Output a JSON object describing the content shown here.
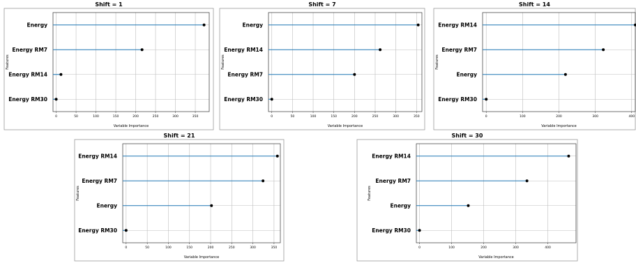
{
  "chart_data": [
    {
      "type": "lollipop",
      "title": "Shift = 1",
      "xlabel": "Variable Importance",
      "ylabel": "Features",
      "categories": [
        "Energy",
        "Energy RM7",
        "Energy RM14",
        "Energy RM30"
      ],
      "values": [
        372,
        216,
        12,
        0
      ],
      "xlim": [
        -8,
        385
      ],
      "xticks": [
        0,
        50,
        100,
        150,
        200,
        250,
        300,
        350
      ],
      "grid": true,
      "stem_color": "#1f77b4"
    },
    {
      "type": "lollipop",
      "title": "Shift = 7",
      "xlabel": "Variable Importance",
      "ylabel": "Features",
      "categories": [
        "Energy",
        "Energy RM14",
        "Energy RM7",
        "Energy RM30"
      ],
      "values": [
        354,
        262,
        200,
        0
      ],
      "xlim": [
        -8,
        363
      ],
      "xticks": [
        0,
        50,
        100,
        150,
        200,
        250,
        300,
        350
      ],
      "grid": true,
      "stem_color": "#1f77b4"
    },
    {
      "type": "lollipop",
      "title": "Shift = 14",
      "xlabel": "Variable Importance",
      "ylabel": "Features",
      "categories": [
        "Energy RM14",
        "Energy RM7",
        "Energy",
        "Energy RM30"
      ],
      "values": [
        410,
        322,
        218,
        0
      ],
      "xlim": [
        -10,
        410
      ],
      "xticks": [
        0,
        100,
        200,
        300,
        400
      ],
      "grid": true,
      "stem_color": "#1f77b4"
    },
    {
      "type": "lollipop",
      "title": "Shift = 21",
      "xlabel": "Variable Importance",
      "ylabel": "Features",
      "categories": [
        "Energy RM14",
        "Energy RM7",
        "Energy",
        "Energy RM30"
      ],
      "values": [
        358,
        324,
        202,
        0
      ],
      "xlim": [
        -8,
        365
      ],
      "xticks": [
        0,
        50,
        100,
        150,
        200,
        250,
        300,
        350
      ],
      "grid": true,
      "stem_color": "#1f77b4"
    },
    {
      "type": "lollipop",
      "title": "Shift = 30",
      "xlabel": "Variable Importance",
      "ylabel": "Features",
      "categories": [
        "Energy RM14",
        "Energy RM7",
        "Energy",
        "Energy RM30"
      ],
      "values": [
        465,
        335,
        152,
        0
      ],
      "xlim": [
        -10,
        488
      ],
      "xticks": [
        0,
        100,
        200,
        300,
        400
      ],
      "grid": true,
      "stem_color": "#1f77b4"
    }
  ]
}
